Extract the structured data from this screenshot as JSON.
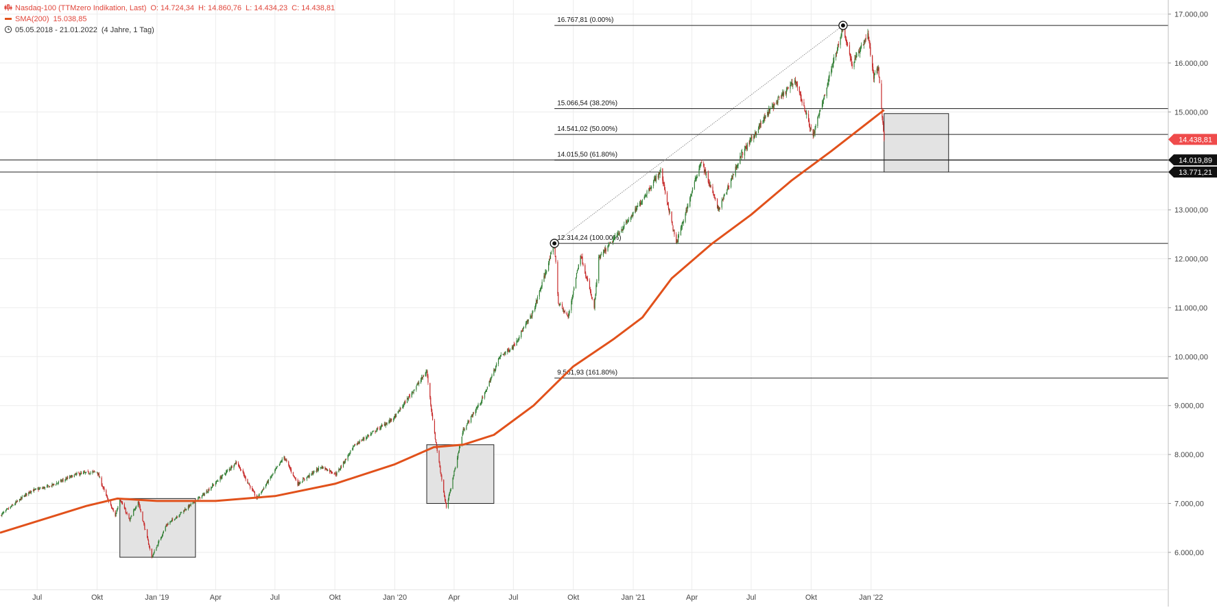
{
  "colors": {
    "up": "#2e7d32",
    "down": "#c62828",
    "sma": "#e1511b",
    "fib_line": "#222222",
    "grid": "#ececec",
    "box_fill": "#e3e3e3",
    "box_stroke": "#222222",
    "price_tag": "#ef4b4b",
    "level_tag": "#111111",
    "legend_red": "#e0463b"
  },
  "legend": {
    "instrument": "Nasdaq-100 (TTMzero Indikation, Last)",
    "open": "O: 14.724,34",
    "high": "H: 14.860,76",
    "low": "L: 14.434,23",
    "close": "C: 14.438,81",
    "sma_label": "SMA(200)",
    "sma_value": "15.038,85",
    "range": "05.05.2018 - 21.01.2022",
    "range_info": "(4 Jahre, 1 Tag)",
    "chart_icon": "candlestick-icon",
    "clock_icon": "clock-icon"
  },
  "chart_data": {
    "type": "candlestick",
    "title": "Nasdaq-100 (TTMzero Indikation, Last)",
    "x_range": [
      "2018-05-05",
      "2022-01-21"
    ],
    "ylim": [
      5700,
      17300
    ],
    "grid": true,
    "y_ticks": [
      {
        "value": 6000,
        "label": "6.000,00"
      },
      {
        "value": 7000,
        "label": "7.000,00"
      },
      {
        "value": 8000,
        "label": "8.000,00"
      },
      {
        "value": 9000,
        "label": "9.000,00"
      },
      {
        "value": 10000,
        "label": "10.000,00"
      },
      {
        "value": 11000,
        "label": "11.000,00"
      },
      {
        "value": 12000,
        "label": "12.000,00"
      },
      {
        "value": 13000,
        "label": "13.000,00"
      },
      {
        "value": 14000,
        "label": "14.000,00"
      },
      {
        "value": 15000,
        "label": "15.000,00"
      },
      {
        "value": 16000,
        "label": "16.000,00"
      },
      {
        "value": 17000,
        "label": "17.000,00"
      }
    ],
    "x_ticks": [
      {
        "date": "2018-07-01",
        "label": "Jul"
      },
      {
        "date": "2018-10-01",
        "label": "Okt"
      },
      {
        "date": "2019-01-01",
        "label": "Jan '19"
      },
      {
        "date": "2019-04-01",
        "label": "Apr"
      },
      {
        "date": "2019-07-01",
        "label": "Jul"
      },
      {
        "date": "2019-10-01",
        "label": "Okt"
      },
      {
        "date": "2020-01-01",
        "label": "Jan '20"
      },
      {
        "date": "2020-04-01",
        "label": "Apr"
      },
      {
        "date": "2020-07-01",
        "label": "Jul"
      },
      {
        "date": "2020-10-01",
        "label": "Okt"
      },
      {
        "date": "2021-01-01",
        "label": "Jan '21"
      },
      {
        "date": "2021-04-01",
        "label": "Apr"
      },
      {
        "date": "2021-07-01",
        "label": "Jul"
      },
      {
        "date": "2021-10-01",
        "label": "Okt"
      },
      {
        "date": "2022-01-01",
        "label": "Jan '22"
      }
    ],
    "price_path": [
      [
        "2018-05-05",
        6750
      ],
      [
        "2018-06-20",
        7250
      ],
      [
        "2018-07-20",
        7350
      ],
      [
        "2018-08-31",
        7600
      ],
      [
        "2018-10-01",
        7650
      ],
      [
        "2018-10-15",
        7150
      ],
      [
        "2018-10-29",
        6750
      ],
      [
        "2018-11-05",
        7100
      ],
      [
        "2018-11-20",
        6650
      ],
      [
        "2018-12-03",
        7050
      ],
      [
        "2018-12-24",
        5900
      ],
      [
        "2019-01-15",
        6550
      ],
      [
        "2019-02-15",
        6900
      ],
      [
        "2019-03-15",
        7200
      ],
      [
        "2019-05-03",
        7850
      ],
      [
        "2019-06-03",
        7100
      ],
      [
        "2019-07-15",
        7950
      ],
      [
        "2019-08-05",
        7400
      ],
      [
        "2019-09-10",
        7750
      ],
      [
        "2019-10-03",
        7600
      ],
      [
        "2019-11-01",
        8200
      ],
      [
        "2019-12-31",
        8750
      ],
      [
        "2020-02-19",
        9700
      ],
      [
        "2020-03-01",
        8500
      ],
      [
        "2020-03-20",
        6900
      ],
      [
        "2020-04-15",
        8500
      ],
      [
        "2020-05-15",
        9150
      ],
      [
        "2020-06-10",
        10000
      ],
      [
        "2020-06-30",
        10200
      ],
      [
        "2020-07-31",
        10900
      ],
      [
        "2020-09-02",
        12300
      ],
      [
        "2020-09-08",
        11100
      ],
      [
        "2020-09-23",
        10800
      ],
      [
        "2020-10-12",
        12100
      ],
      [
        "2020-11-02",
        11000
      ],
      [
        "2020-11-09",
        12000
      ],
      [
        "2020-12-31",
        12900
      ],
      [
        "2021-02-12",
        13800
      ],
      [
        "2021-03-08",
        12300
      ],
      [
        "2021-04-15",
        14000
      ],
      [
        "2021-05-12",
        13000
      ],
      [
        "2021-06-15",
        14100
      ],
      [
        "2021-07-30",
        15050
      ],
      [
        "2021-09-07",
        15650
      ],
      [
        "2021-10-04",
        14500
      ],
      [
        "2021-11-19",
        16750
      ],
      [
        "2021-12-03",
        15950
      ],
      [
        "2021-12-27",
        16600
      ],
      [
        "2022-01-05",
        15700
      ],
      [
        "2022-01-12",
        15900
      ],
      [
        "2022-01-21",
        14438.81
      ]
    ],
    "sma_path": [
      [
        "2018-05-05",
        6400
      ],
      [
        "2018-09-15",
        6950
      ],
      [
        "2018-11-01",
        7100
      ],
      [
        "2019-01-01",
        7050
      ],
      [
        "2019-04-01",
        7050
      ],
      [
        "2019-07-01",
        7150
      ],
      [
        "2019-10-01",
        7400
      ],
      [
        "2020-01-01",
        7800
      ],
      [
        "2020-03-01",
        8150
      ],
      [
        "2020-04-15",
        8200
      ],
      [
        "2020-06-01",
        8400
      ],
      [
        "2020-08-01",
        9000
      ],
      [
        "2020-10-01",
        9800
      ],
      [
        "2020-12-01",
        10350
      ],
      [
        "2021-01-15",
        10800
      ],
      [
        "2021-03-01",
        11600
      ],
      [
        "2021-05-01",
        12300
      ],
      [
        "2021-07-01",
        12900
      ],
      [
        "2021-09-01",
        13600
      ],
      [
        "2021-11-01",
        14200
      ],
      [
        "2022-01-21",
        15038.85
      ]
    ],
    "fib_anchors": [
      [
        "2020-09-02",
        12314.24
      ],
      [
        "2021-11-19",
        16767.81
      ]
    ],
    "fib_start_date": "2020-09-02",
    "fib_levels": [
      {
        "value": 16767.81,
        "label": "16.767,81 (0.00%)"
      },
      {
        "value": 15066.54,
        "label": "15.066,54 (38.20%)"
      },
      {
        "value": 14541.02,
        "label": "14.541,02 (50.00%)"
      },
      {
        "value": 14015.5,
        "label": "14.015,50 (61.80%)"
      },
      {
        "value": 12314.24,
        "label": "12.314,24 (100.00%)"
      },
      {
        "value": 9561.93,
        "label": "9.561,93 (161.80%)"
      }
    ],
    "horizontal_levels": [
      {
        "value": 14019.89,
        "label": "14.019,89"
      },
      {
        "value": 13771.21,
        "label": "13.771,21"
      }
    ],
    "last_price": {
      "value": 14438.81,
      "label": "14.438,81"
    },
    "boxes": [
      {
        "x0": "2018-11-05",
        "x1": "2019-03-01",
        "y0": 5900,
        "y1": 7100
      },
      {
        "x0": "2020-02-19",
        "x1": "2020-06-01",
        "y0": 7000,
        "y1": 8200
      },
      {
        "x0": "2022-01-21",
        "x1": "2022-04-30",
        "y0": 13771.21,
        "y1": 14966
      }
    ]
  }
}
